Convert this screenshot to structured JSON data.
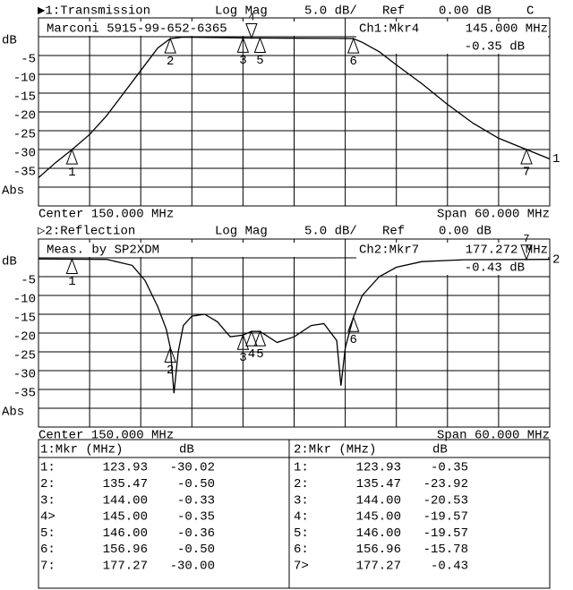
{
  "chart_data": [
    {
      "type": "line",
      "title": "▶1:Transmission",
      "format": "Log Mag",
      "scale": "5.0 dB/",
      "ref_label": "Ref",
      "ref": "0.00 dB",
      "flag": "C",
      "annotation": "Marconi 5915-99-652-6365",
      "active_marker": "Ch1:Mkr4",
      "active_freq": "145.000 MHz",
      "active_value": "-0.35 dB",
      "center": "Center 150.000 MHz",
      "span": "Span 60.000 MHz",
      "channel_label": "1",
      "xlim": [
        120,
        180
      ],
      "ylim": [
        -45,
        5
      ],
      "yticks": [
        {
          "value": 0,
          "label": "dB"
        },
        -5,
        -10,
        -15,
        -20,
        -25,
        -30,
        -35,
        {
          "value": -40,
          "label": "Abs"
        }
      ],
      "x": [
        120,
        122,
        123.93,
        126,
        128,
        130,
        132,
        134,
        135.47,
        137,
        140,
        144,
        145,
        146,
        150,
        155,
        156.96,
        158,
        160,
        162,
        165,
        168,
        171,
        174,
        177.27,
        180
      ],
      "series": [
        {
          "color": "#000000",
          "values": [
            -37.5,
            -33.5,
            -30.02,
            -26,
            -21,
            -15,
            -9,
            -3,
            -0.5,
            -0.1,
            -0.2,
            -0.33,
            -0.35,
            -0.36,
            -0.4,
            -0.45,
            -0.5,
            -1.5,
            -4,
            -7.5,
            -12.5,
            -18,
            -23,
            -27,
            -30,
            -32.5
          ]
        }
      ],
      "markers": [
        {
          "label": "1",
          "x": 123.93,
          "y": -30.02
        },
        {
          "label": "2",
          "x": 135.47,
          "y": -0.5
        },
        {
          "label": "3",
          "x": 144,
          "y": -0.33
        },
        {
          "label": "4",
          "x": 145,
          "y": -0.35,
          "active": true
        },
        {
          "label": "5",
          "x": 146,
          "y": -0.36
        },
        {
          "label": "6",
          "x": 156.96,
          "y": -0.5
        },
        {
          "label": "7",
          "x": 177.27,
          "y": -30
        }
      ]
    },
    {
      "type": "line",
      "title": "▷2:Reflection",
      "format": "Log Mag",
      "scale": "5.0 dB/",
      "ref_label": "Ref",
      "ref": "0.00 dB",
      "annotation": "Meas. by SP2XDM",
      "active_marker": "Ch2:Mkr7",
      "active_freq": "177.272 MHz",
      "active_value": "-0.43 dB",
      "center": "Center 150.000 MHz",
      "span": "Span 60.000 MHz",
      "channel_label": "2",
      "xlim": [
        120,
        180
      ],
      "ylim": [
        -45,
        5
      ],
      "yticks": [
        {
          "value": 0,
          "label": "dB"
        },
        -5,
        -10,
        -15,
        -20,
        -25,
        -30,
        -35,
        {
          "value": -40,
          "label": "Abs"
        }
      ],
      "x": [
        120,
        123.93,
        128,
        131,
        132.5,
        134,
        135,
        135.47,
        135.9,
        136.4,
        137,
        138,
        139.5,
        141,
        142.5,
        144,
        145,
        146,
        148,
        150,
        152,
        153.5,
        155,
        155.5,
        156,
        156.96,
        158,
        160,
        162,
        165,
        170,
        177.27,
        180
      ],
      "series": [
        {
          "color": "#000000",
          "values": [
            -0.3,
            -0.35,
            -0.4,
            -2,
            -6,
            -13,
            -19,
            -23.92,
            -36,
            -25,
            -18,
            -15.5,
            -15,
            -17,
            -21,
            -20.53,
            -19.57,
            -19.57,
            -22.5,
            -21,
            -18,
            -17.5,
            -22,
            -34,
            -24,
            -15.78,
            -10,
            -5,
            -2.5,
            -1,
            -0.5,
            -0.43,
            -0.4
          ]
        }
      ],
      "markers": [
        {
          "label": "1",
          "x": 123.93,
          "y": -0.35
        },
        {
          "label": "2",
          "x": 135.47,
          "y": -23.92
        },
        {
          "label": "3",
          "x": 144,
          "y": -20.53
        },
        {
          "label": "4",
          "x": 145,
          "y": -19.57
        },
        {
          "label": "5",
          "x": 146,
          "y": -19.57
        },
        {
          "label": "6",
          "x": 156.96,
          "y": -15.78
        },
        {
          "label": "7",
          "x": 177.27,
          "y": -0.43,
          "active": true
        }
      ]
    }
  ],
  "marker_table": [
    {
      "header": [
        "1:Mkr (MHz)",
        "dB"
      ],
      "rows": [
        [
          "1:",
          "123.93",
          "-30.02"
        ],
        [
          "2:",
          "135.47",
          "-0.50"
        ],
        [
          "3:",
          "144.00",
          "-0.33"
        ],
        [
          "4>",
          "145.00",
          "-0.35"
        ],
        [
          "5:",
          "146.00",
          "-0.36"
        ],
        [
          "6:",
          "156.96",
          "-0.50"
        ],
        [
          "7:",
          "177.27",
          "-30.00"
        ]
      ]
    },
    {
      "header": [
        "2:Mkr (MHz)",
        "dB"
      ],
      "rows": [
        [
          "1:",
          "123.93",
          "-0.35"
        ],
        [
          "2:",
          "135.47",
          "-23.92"
        ],
        [
          "3:",
          "144.00",
          "-20.53"
        ],
        [
          "4:",
          "145.00",
          "-19.57"
        ],
        [
          "5:",
          "146.00",
          "-19.57"
        ],
        [
          "6:",
          "156.96",
          "-15.78"
        ],
        [
          "7>",
          "177.27",
          "-0.43"
        ]
      ]
    }
  ]
}
